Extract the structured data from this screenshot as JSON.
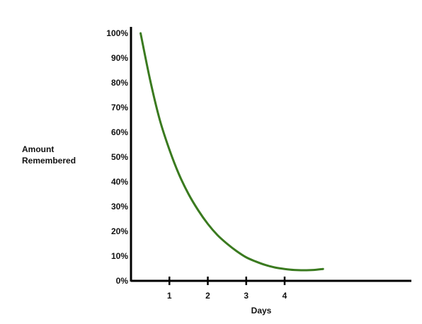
{
  "chart_data": {
    "type": "line",
    "xlabel": "Days",
    "ylabel_lines": [
      "Amount",
      "Remembered"
    ],
    "xlim": [
      0,
      7.3
    ],
    "ylim": [
      0,
      100
    ],
    "x_ticks": [
      1,
      2,
      3,
      4
    ],
    "x_tick_labels": [
      "1",
      "2",
      "3",
      "4"
    ],
    "y_ticks": [
      0,
      10,
      20,
      30,
      40,
      50,
      60,
      70,
      80,
      90,
      100
    ],
    "y_tick_labels": [
      "0%",
      "10%",
      "20%",
      "30%",
      "40%",
      "50%",
      "60%",
      "70%",
      "80%",
      "90%",
      "100%"
    ],
    "grid": false,
    "series": [
      {
        "color": "#3a7a1f",
        "x": [
          0.25,
          0.5,
          0.75,
          1.0,
          1.25,
          1.5,
          1.75,
          2.0,
          2.25,
          2.5,
          2.75,
          3.0,
          3.25,
          3.5,
          3.75,
          4.0,
          4.25,
          4.5,
          4.75,
          5.0
        ],
        "y": [
          100,
          81,
          65,
          53,
          43,
          35,
          28.5,
          23,
          18.5,
          15,
          12,
          9.5,
          7.8,
          6.4,
          5.4,
          4.8,
          4.4,
          4.3,
          4.4,
          4.8
        ]
      }
    ]
  }
}
